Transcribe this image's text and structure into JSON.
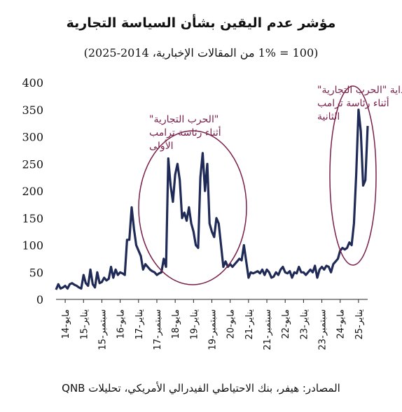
{
  "chart_data": {
    "type": "line",
    "title": "مؤشر عدم اليقين بشأن السياسة التجارية",
    "subtitle": "(100 = 1% من المقالات الإخبارية، 2014-2025)",
    "ylim": [
      0,
      400
    ],
    "yticks": [
      "0",
      "50",
      "100",
      "150",
      "200",
      "250",
      "300",
      "350",
      "400"
    ],
    "grid": false,
    "x_ticks": [
      "مايو-14",
      "يناير-15",
      "سبتمبر-15",
      "مايو-16",
      "يناير-17",
      "سبتمبر-17",
      "مايو-18",
      "يناير-19",
      "سبتمبر-19",
      "مايو-20",
      "يناير-21",
      "سبتمبر-21",
      "مايو-22",
      "يناير-23",
      "سبتمبر-23",
      "مايو-24",
      "يناير-25"
    ],
    "color": "#1f2a57",
    "highlight_color": "#7a1f4a",
    "annotations": {
      "first": [
        "\"الحرب التجارية\"",
        "أثناء رئاسة ترامب",
        "الأولى"
      ],
      "second": [
        "بداية \"الحرب التجارية\"",
        "أثناء رئاسة ترامب",
        "الثانية"
      ]
    },
    "series": [
      {
        "x": [
          "2014-01",
          "2014-02",
          "2014-03",
          "2014-04",
          "2014-05",
          "2014-06",
          "2014-07",
          "2014-08",
          "2014-09",
          "2014-10",
          "2014-11",
          "2014-12",
          "2015-01",
          "2015-02",
          "2015-03",
          "2015-04",
          "2015-05",
          "2015-06",
          "2015-07",
          "2015-08",
          "2015-09",
          "2015-10",
          "2015-11",
          "2015-12",
          "2016-01",
          "2016-02",
          "2016-03",
          "2016-04",
          "2016-05",
          "2016-06",
          "2016-07",
          "2016-08",
          "2016-09",
          "2016-10",
          "2016-11",
          "2016-12",
          "2017-01",
          "2017-02",
          "2017-03",
          "2017-04",
          "2017-05",
          "2017-06",
          "2017-07",
          "2017-08",
          "2017-09",
          "2017-10",
          "2017-11",
          "2017-12",
          "2018-01",
          "2018-02",
          "2018-03",
          "2018-04",
          "2018-05",
          "2018-06",
          "2018-07",
          "2018-08",
          "2018-09",
          "2018-10",
          "2018-11",
          "2018-12",
          "2019-01",
          "2019-02",
          "2019-03",
          "2019-04",
          "2019-05",
          "2019-06",
          "2019-07",
          "2019-08",
          "2019-09",
          "2019-10",
          "2019-11",
          "2019-12",
          "2020-01",
          "2020-02",
          "2020-03",
          "2020-04",
          "2020-05",
          "2020-06",
          "2020-07",
          "2020-08",
          "2020-09",
          "2020-10",
          "2020-11",
          "2020-12",
          "2021-01",
          "2021-02",
          "2021-03",
          "2021-04",
          "2021-05",
          "2021-06",
          "2021-07",
          "2021-08",
          "2021-09",
          "2021-10",
          "2021-11",
          "2021-12",
          "2022-01",
          "2022-02",
          "2022-03",
          "2022-04",
          "2022-05",
          "2022-06",
          "2022-07",
          "2022-08",
          "2022-09",
          "2022-10",
          "2022-11",
          "2022-12",
          "2023-01",
          "2023-02",
          "2023-03",
          "2023-04",
          "2023-05",
          "2023-06",
          "2023-07",
          "2023-08",
          "2023-09",
          "2023-10",
          "2023-11",
          "2023-12",
          "2024-01",
          "2024-02",
          "2024-03",
          "2024-04",
          "2024-05",
          "2024-06",
          "2024-07",
          "2024-08",
          "2024-09",
          "2024-10",
          "2024-11",
          "2024-12",
          "2025-01",
          "2025-02",
          "2025-03",
          "2025-04",
          "2025-05"
        ],
        "values": [
          18,
          28,
          20,
          22,
          25,
          20,
          28,
          30,
          27,
          25,
          22,
          20,
          45,
          30,
          25,
          55,
          28,
          22,
          50,
          30,
          32,
          40,
          35,
          38,
          60,
          40,
          55,
          45,
          50,
          48,
          45,
          110,
          110,
          170,
          130,
          100,
          90,
          80,
          55,
          65,
          60,
          55,
          52,
          50,
          45,
          48,
          50,
          75,
          60,
          260,
          210,
          180,
          230,
          250,
          220,
          150,
          160,
          145,
          170,
          140,
          125,
          100,
          95,
          225,
          270,
          200,
          250,
          140,
          125,
          115,
          150,
          140,
          100,
          60,
          70,
          60,
          65,
          60,
          65,
          70,
          75,
          72,
          100,
          70,
          40,
          50,
          48,
          50,
          52,
          48,
          55,
          45,
          55,
          50,
          40,
          42,
          50,
          45,
          55,
          60,
          50,
          48,
          52,
          40,
          50,
          48,
          60,
          50,
          50,
          45,
          50,
          55,
          50,
          62,
          40,
          55,
          60,
          55,
          62,
          60,
          50,
          65,
          70,
          75,
          90,
          95,
          92,
          95,
          105,
          100,
          140,
          230,
          350,
          310,
          210,
          220,
          320
        ]
      }
    ]
  },
  "source_text": "المصادر: هيفر، بنك الاحتياطي الفيدرالي الأمريكي، تحليلات QNB"
}
